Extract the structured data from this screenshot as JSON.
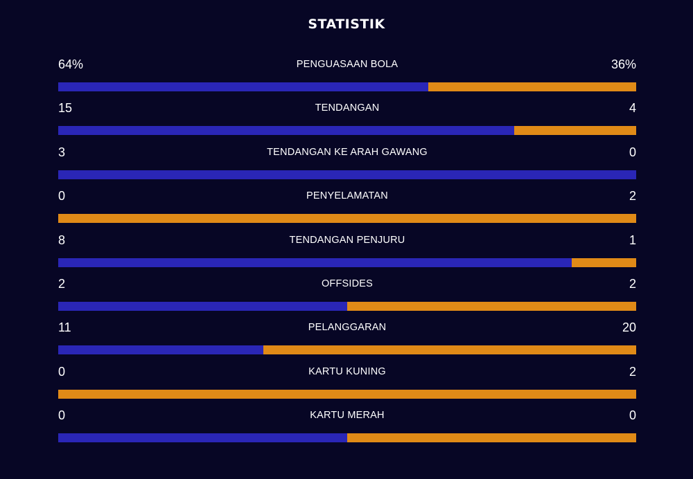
{
  "title": "STATISTIK",
  "colors": {
    "background": "#070625",
    "home": "#2a26b6",
    "away": "#e08a17"
  },
  "stats": [
    {
      "label": "PENGUASAAN BOLA",
      "left": "64%",
      "right": "36%",
      "left_share": 0.64
    },
    {
      "label": "TENDANGAN",
      "left": "15",
      "right": "4",
      "left_share": 0.789
    },
    {
      "label": "TENDANGAN KE ARAH GAWANG",
      "left": "3",
      "right": "0",
      "left_share": 1.0
    },
    {
      "label": "PENYELAMATAN",
      "left": "0",
      "right": "2",
      "left_share": 0.0
    },
    {
      "label": "TENDANGAN PENJURU",
      "left": "8",
      "right": "1",
      "left_share": 0.889
    },
    {
      "label": "OFFSIDES",
      "left": "2",
      "right": "2",
      "left_share": 0.5
    },
    {
      "label": "PELANGGARAN",
      "left": "11",
      "right": "20",
      "left_share": 0.355
    },
    {
      "label": "KARTU KUNING",
      "left": "0",
      "right": "2",
      "left_share": 0.0
    },
    {
      "label": "KARTU MERAH",
      "left": "0",
      "right": "0",
      "left_share": 0.5
    }
  ]
}
